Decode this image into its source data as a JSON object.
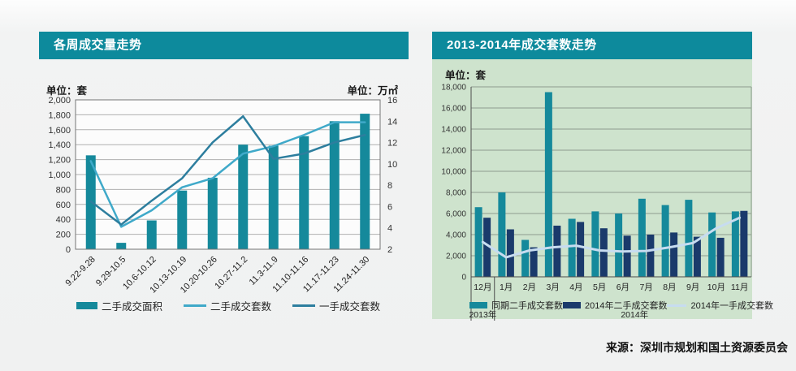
{
  "page": {
    "background": "#f1f2f2",
    "source_note": "来源：深圳市规划和国土资源委员会"
  },
  "theme": {
    "header_color": "#0d8a9c",
    "panel_green": "#cee3cd",
    "left_plot_bg": "#fcfcfc",
    "left_grid": "#b0b0b0",
    "left_border": "#757575",
    "right_grid": "#8f9b8f",
    "right_axis_line": "#4d4d4d",
    "text_color": "#222222"
  },
  "chart_data": [
    {
      "id": "weekly-volume",
      "type": "combo-bar-line",
      "title": "各周成交量走势",
      "unit_left": "单位：套",
      "unit_right": "单位：万㎡",
      "legend_position": "bottom",
      "grid": "horizontal",
      "categories": [
        "9.22-9.28",
        "9.29-10.5",
        "10.6-10.12",
        "10.13-10.19",
        "10.20-10.26",
        "10.27-11.2",
        "11.3-11.9",
        "11.10-11.16",
        "11.17-11.23",
        "11.24-11.30"
      ],
      "left_axis": {
        "unit": "套",
        "min": 0,
        "max": 2000,
        "step": 200,
        "ticks": [
          "2,000",
          "1,800",
          "1,600",
          "1,400",
          "1,200",
          "1,000",
          "800",
          "600",
          "400",
          "200",
          "0"
        ]
      },
      "right_axis": {
        "unit": "万㎡",
        "min": 2,
        "max": 16,
        "step": 2,
        "ticks": [
          "16",
          "14",
          "12",
          "10",
          "8",
          "6",
          "4",
          "2"
        ]
      },
      "series": [
        {
          "name": "二手成交面积",
          "type": "bar",
          "axis": "right",
          "unit": "万㎡",
          "color": "#15899b",
          "values": [
            10.8,
            2.6,
            4.7,
            7.5,
            8.7,
            11.8,
            11.7,
            12.6,
            14.0,
            14.7
          ]
        },
        {
          "name": "二手成交套数",
          "type": "line",
          "axis": "left",
          "unit": "套",
          "color": "#3fa9c9",
          "values": [
            1180,
            300,
            520,
            830,
            950,
            1280,
            1380,
            1530,
            1700,
            1700
          ]
        },
        {
          "name": "一手成交套数",
          "type": "line",
          "axis": "left",
          "unit": "套",
          "color": "#2d7e9e",
          "values": [
            640,
            330,
            650,
            950,
            1430,
            1780,
            1210,
            1280,
            1430,
            1530
          ]
        }
      ]
    },
    {
      "id": "yearly-units",
      "type": "combo-bar-line",
      "title": "2013-2014年成交套数走势",
      "unit": "单位：套",
      "legend_position": "bottom",
      "grid": "horizontal",
      "categories": [
        "12月",
        "1月",
        "2月",
        "3月",
        "4月",
        "5月",
        "6月",
        "7月",
        "8月",
        "9月",
        "10月",
        "11月"
      ],
      "y_axis": {
        "unit": "套",
        "min": 0,
        "max": 18000,
        "step": 2000,
        "ticks": [
          "18,000",
          "16,000",
          "14,000",
          "12,000",
          "10,000",
          "8,000",
          "6,000",
          "4,000",
          "2,000",
          "0"
        ]
      },
      "year_groups": [
        {
          "label": "2013年",
          "months": [
            "12月"
          ]
        },
        {
          "label": "2014年",
          "months": [
            "1月",
            "2月",
            "3月",
            "4月",
            "5月",
            "6月",
            "7月",
            "8月",
            "9月",
            "10月",
            "11月"
          ]
        }
      ],
      "series": [
        {
          "name": "同期二手成交套数",
          "type": "bar",
          "color": "#15899b",
          "values": [
            6600,
            8000,
            3500,
            17500,
            5500,
            6200,
            6000,
            7400,
            6800,
            7300,
            6100,
            6200
          ]
        },
        {
          "name": "2014年二手成交套数",
          "type": "bar",
          "color": "#1a3a6b",
          "values": [
            5600,
            4500,
            2800,
            4850,
            5200,
            4600,
            3900,
            4000,
            4200,
            3800,
            3700,
            6250
          ]
        },
        {
          "name": "2014年一手成交套数",
          "type": "line",
          "color": "#c7dcf0",
          "values": [
            3300,
            1850,
            2500,
            2800,
            2950,
            2500,
            2400,
            2450,
            2800,
            3200,
            4600,
            5600
          ]
        }
      ]
    }
  ]
}
